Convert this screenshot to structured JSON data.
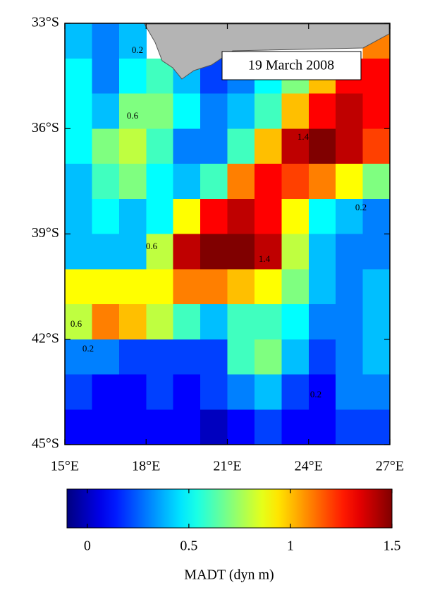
{
  "chart_data": {
    "type": "heatmap",
    "annotation": "19 March 2008",
    "xlim": [
      15,
      27
    ],
    "ylim": [
      -45,
      -33
    ],
    "xticks": [
      {
        "value": 15,
        "label": "15°E"
      },
      {
        "value": 18,
        "label": "18°E"
      },
      {
        "value": 21,
        "label": "21°E"
      },
      {
        "value": 24,
        "label": "24°E"
      },
      {
        "value": 27,
        "label": "27°E"
      }
    ],
    "yticks": [
      {
        "value": -33,
        "label": "33°S"
      },
      {
        "value": -36,
        "label": "36°S"
      },
      {
        "value": -39,
        "label": "39°S"
      },
      {
        "value": -42,
        "label": "42°S"
      },
      {
        "value": -45,
        "label": "45°S"
      }
    ],
    "x": [
      15.5,
      16.5,
      17.5,
      18.5,
      19.5,
      20.5,
      21.5,
      22.5,
      23.5,
      24.5,
      25.5,
      26.5
    ],
    "y": [
      -33.5,
      -34.5,
      -35.5,
      -36.5,
      -37.5,
      -38.5,
      -39.5,
      -40.5,
      -41.5,
      -42.5,
      -43.5,
      -44.5
    ],
    "values": [
      [
        0.4,
        0.3,
        0.4,
        null,
        null,
        null,
        null,
        null,
        null,
        null,
        null,
        1.1
      ],
      [
        0.5,
        0.3,
        0.5,
        0.6,
        0.4,
        0.2,
        0.3,
        0.5,
        0.7,
        1.0,
        1.3,
        1.3
      ],
      [
        0.5,
        0.4,
        0.7,
        0.7,
        0.5,
        0.3,
        0.4,
        0.6,
        1.0,
        1.3,
        1.4,
        1.3
      ],
      [
        0.5,
        0.7,
        0.8,
        0.6,
        0.3,
        0.3,
        0.6,
        1.0,
        1.4,
        1.5,
        1.4,
        1.2
      ],
      [
        0.4,
        0.6,
        0.7,
        0.5,
        0.4,
        0.6,
        1.1,
        1.3,
        1.2,
        1.1,
        0.9,
        0.7
      ],
      [
        0.4,
        0.5,
        0.4,
        0.5,
        0.9,
        1.3,
        1.4,
        1.3,
        0.9,
        0.5,
        0.4,
        0.3
      ],
      [
        0.4,
        0.4,
        0.4,
        0.8,
        1.4,
        1.5,
        1.5,
        1.4,
        0.8,
        0.4,
        0.3,
        0.3
      ],
      [
        0.9,
        0.9,
        0.9,
        0.9,
        1.1,
        1.1,
        1.0,
        0.9,
        0.7,
        0.4,
        0.3,
        0.4
      ],
      [
        0.8,
        1.1,
        1.0,
        0.8,
        0.6,
        0.4,
        0.6,
        0.6,
        0.5,
        0.3,
        0.3,
        0.4
      ],
      [
        0.3,
        0.3,
        0.2,
        0.2,
        0.2,
        0.2,
        0.6,
        0.7,
        0.4,
        0.2,
        0.3,
        0.4
      ],
      [
        0.2,
        0.1,
        0.1,
        0.2,
        0.1,
        0.2,
        0.3,
        0.4,
        0.2,
        0.1,
        0.3,
        0.3
      ],
      [
        0.1,
        0.1,
        0.1,
        0.1,
        0.1,
        0.0,
        0.1,
        0.2,
        0.1,
        0.1,
        0.2,
        0.2
      ]
    ],
    "contour_labels": [
      "0.6",
      "0.2",
      "0.6",
      "1.4",
      "1.4",
      "0.2",
      "0.2",
      "0.2",
      "0.6"
    ],
    "colorbar": {
      "label": "MADT (dyn m)",
      "lim": [
        -0.1,
        1.5
      ],
      "ticks": [
        0,
        0.5,
        1,
        1.5
      ]
    }
  }
}
